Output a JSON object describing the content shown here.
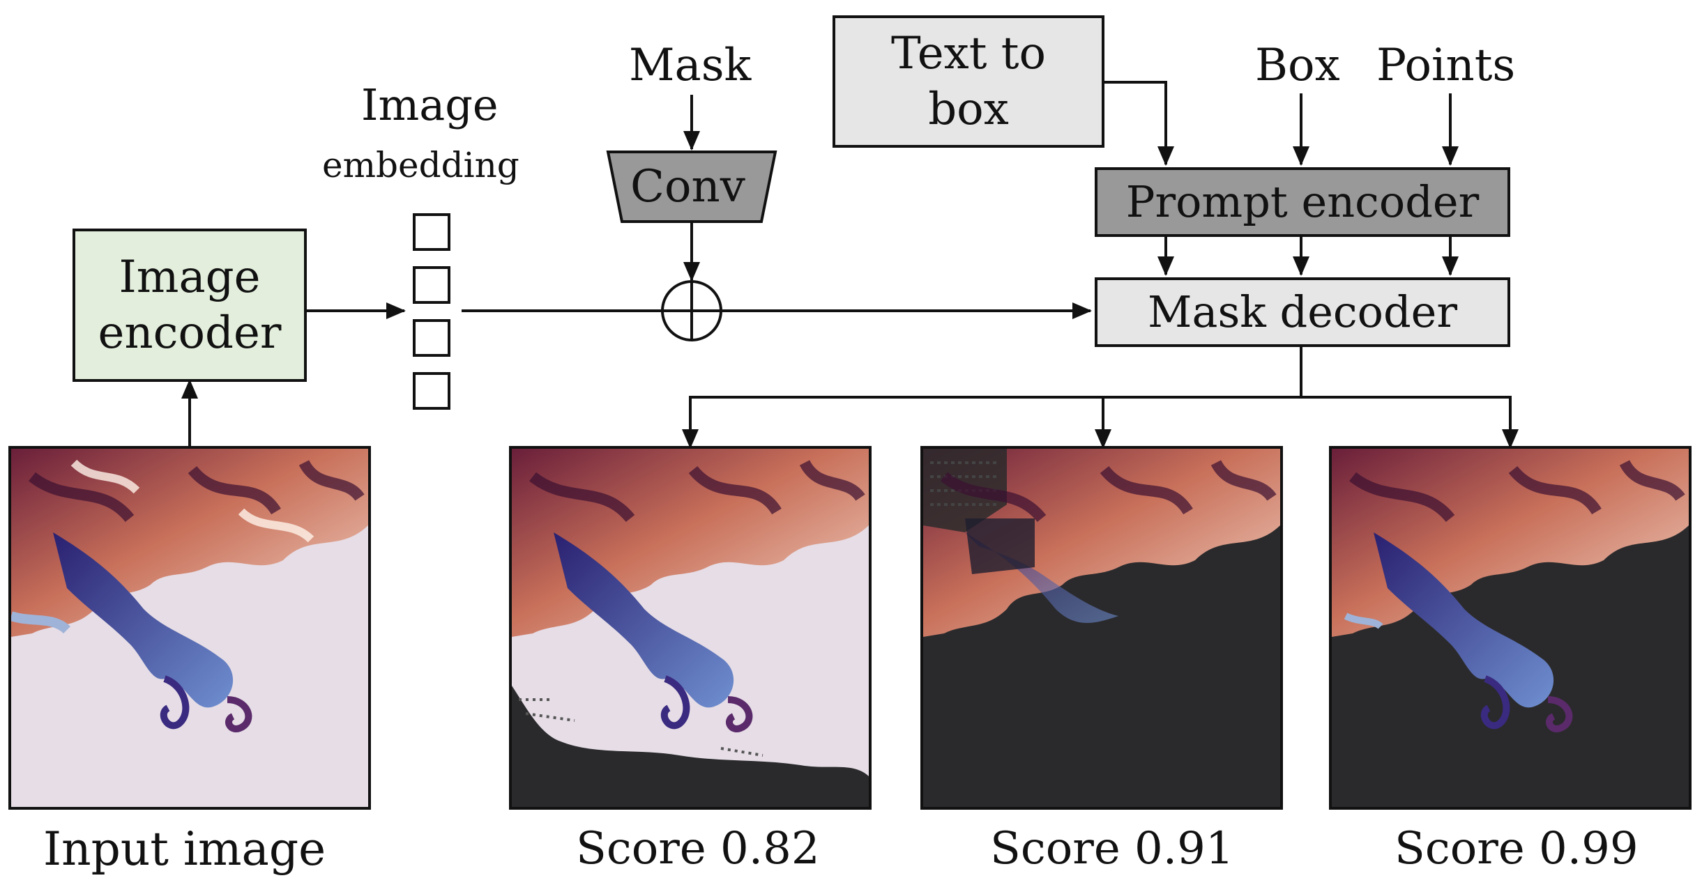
{
  "nodes": {
    "image_encoder": "Image\nencoder",
    "image_embedding_title": "Image",
    "image_embedding_sub": "embedding",
    "mask_input": "Mask",
    "conv": "Conv",
    "text_to_box": "Text to\nbox",
    "box_input": "Box",
    "points_input": "Points",
    "prompt_encoder": "Prompt encoder",
    "mask_decoder": "Mask decoder"
  },
  "captions": {
    "input": "Input image",
    "score1": "Score 0.82",
    "score2": "Score 0.91",
    "score3": "Score 0.99"
  },
  "colors": {
    "image_encoder_fill": "#e3efdc",
    "light_gray_fill": "#e6e6e6",
    "dark_gray_fill": "#999999",
    "masked_background": "#2a2a2c",
    "flow_background": "#e6dde6"
  }
}
